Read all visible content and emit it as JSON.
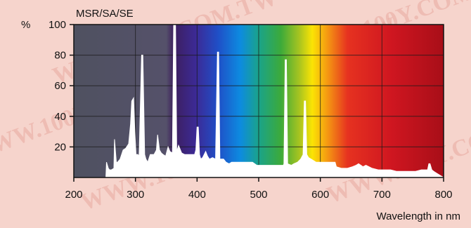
{
  "chart_data": {
    "type": "area",
    "title": "MSR/SA/SE",
    "ylabel": "%",
    "xlabel": "Wavelength in nm",
    "xlim": [
      200,
      800
    ],
    "ylim": [
      0,
      100
    ],
    "x_ticks": [
      "200",
      "300",
      "400",
      "500",
      "600",
      "700",
      "800"
    ],
    "y_ticks": [
      "20",
      "40",
      "60",
      "80",
      "100"
    ],
    "grid": true,
    "background": "visible-spectrum gradient",
    "watermark": "WWW.100Y.COM.TW",
    "series": [
      {
        "x": [
          200,
          252,
          253,
          256,
          258,
          261,
          265,
          266,
          269,
          271,
          275,
          280,
          284,
          289,
          292,
          294,
          297,
          299,
          301,
          304,
          306,
          310,
          312,
          315,
          317,
          320,
          324,
          330,
          334,
          336,
          339,
          342,
          345,
          349,
          353,
          356,
          360,
          362,
          365,
          367,
          370,
          375,
          380,
          385,
          390,
          396,
          398,
          400,
          402,
          404,
          406,
          409,
          414,
          417,
          420,
          425,
          430,
          433,
          435,
          437,
          440,
          443,
          447,
          452,
          456,
          462,
          470,
          480,
          490,
          497,
          503,
          512,
          522,
          535,
          540,
          541,
          543,
          545,
          547,
          553,
          557,
          563,
          568,
          572,
          574,
          576,
          578,
          581,
          585,
          593,
          603,
          613,
          624,
          626,
          634,
          644,
          652,
          658,
          662,
          666,
          669,
          674,
          679,
          684,
          694,
          704,
          714,
          724,
          734,
          744,
          754,
          764,
          774,
          776,
          778,
          781,
          784,
          788,
          800
        ],
        "y": [
          0,
          0,
          10,
          6,
          5,
          5,
          6,
          25,
          10,
          10,
          12,
          18,
          19,
          22,
          35,
          50,
          52,
          30,
          15,
          15,
          14,
          80,
          80,
          15,
          12,
          10,
          15,
          15,
          18,
          28,
          18,
          16,
          15,
          14,
          20,
          17,
          16,
          100,
          100,
          17,
          21,
          16,
          15,
          15,
          15,
          15,
          18,
          33,
          33,
          15,
          12,
          13,
          17,
          14,
          12,
          13,
          12,
          82,
          82,
          12,
          12,
          12,
          10,
          9,
          10,
          10,
          10,
          10,
          10,
          8,
          8,
          8,
          8,
          8,
          8,
          9,
          77,
          77,
          9,
          8,
          9,
          10,
          12,
          15,
          50,
          50,
          15,
          13,
          12,
          10,
          10,
          10,
          10,
          7,
          6,
          6,
          7,
          8,
          9,
          8,
          7,
          8,
          7,
          6,
          5,
          5,
          5,
          4,
          4,
          4,
          4,
          5,
          5,
          9,
          9,
          5,
          4,
          3,
          0
        ]
      }
    ]
  }
}
